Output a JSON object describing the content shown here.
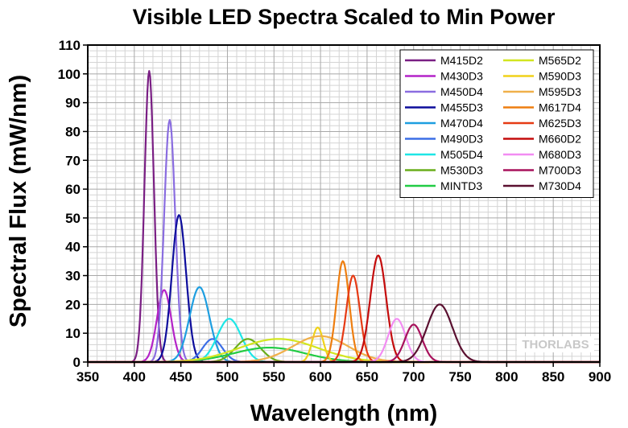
{
  "chart_data": {
    "type": "line",
    "title": "Visible LED Spectra Scaled to Min Power",
    "xlabel": "Wavelength (nm)",
    "ylabel": "Spectral Flux (mW/nm)",
    "xlim": [
      350,
      900
    ],
    "ylim": [
      0,
      110
    ],
    "xticks": [
      350,
      400,
      450,
      500,
      550,
      600,
      650,
      700,
      750,
      800,
      850,
      900
    ],
    "yticks": [
      0,
      10,
      20,
      30,
      40,
      50,
      60,
      70,
      80,
      90,
      100,
      110
    ],
    "grid": true,
    "legend_position": "top-right",
    "watermark": "THORLABS",
    "series": [
      {
        "name": "M415D2",
        "color": "#7a1f84",
        "peak_nm": 416,
        "peak_value": 101,
        "fwhm_nm": 12
      },
      {
        "name": "M430D3",
        "color": "#b423c8",
        "peak_nm": 432,
        "peak_value": 25,
        "fwhm_nm": 18
      },
      {
        "name": "M450D4",
        "color": "#8a6de0",
        "peak_nm": 438,
        "peak_value": 84,
        "fwhm_nm": 14
      },
      {
        "name": "M455D3",
        "color": "#0d0d9c",
        "peak_nm": 448,
        "peak_value": 51,
        "fwhm_nm": 18
      },
      {
        "name": "M470D4",
        "color": "#1e9ee0",
        "peak_nm": 470,
        "peak_value": 26,
        "fwhm_nm": 25
      },
      {
        "name": "M490D3",
        "color": "#3c6ee6",
        "peak_nm": 484,
        "peak_value": 8,
        "fwhm_nm": 25
      },
      {
        "name": "M505D4",
        "color": "#1ee6e6",
        "peak_nm": 502,
        "peak_value": 15,
        "fwhm_nm": 30
      },
      {
        "name": "M530D3",
        "color": "#6aae1c",
        "peak_nm": 522,
        "peak_value": 8,
        "fwhm_nm": 32
      },
      {
        "name": "MINTD3",
        "color": "#22cc44",
        "peak_nm": 545,
        "peak_value": 5,
        "fwhm_nm": 90
      },
      {
        "name": "M565D2",
        "color": "#d2e620",
        "peak_nm": 555,
        "peak_value": 8,
        "fwhm_nm": 100
      },
      {
        "name": "M590D3",
        "color": "#f0d21a",
        "peak_nm": 597,
        "peak_value": 12,
        "fwhm_nm": 14
      },
      {
        "name": "M595D3",
        "color": "#f0b04a",
        "peak_nm": 600,
        "peak_value": 9,
        "fwhm_nm": 70
      },
      {
        "name": "M617D4",
        "color": "#ee7e10",
        "peak_nm": 624,
        "peak_value": 35,
        "fwhm_nm": 16
      },
      {
        "name": "M625D3",
        "color": "#e63a14",
        "peak_nm": 635,
        "peak_value": 30,
        "fwhm_nm": 17
      },
      {
        "name": "M660D2",
        "color": "#c40c0c",
        "peak_nm": 662,
        "peak_value": 37,
        "fwhm_nm": 20
      },
      {
        "name": "M680D3",
        "color": "#f28cf2",
        "peak_nm": 682,
        "peak_value": 15,
        "fwhm_nm": 22
      },
      {
        "name": "M700D3",
        "color": "#a8125c",
        "peak_nm": 700,
        "peak_value": 13,
        "fwhm_nm": 22
      },
      {
        "name": "M730D4",
        "color": "#5a1030",
        "peak_nm": 728,
        "peak_value": 20,
        "fwhm_nm": 32
      }
    ]
  }
}
